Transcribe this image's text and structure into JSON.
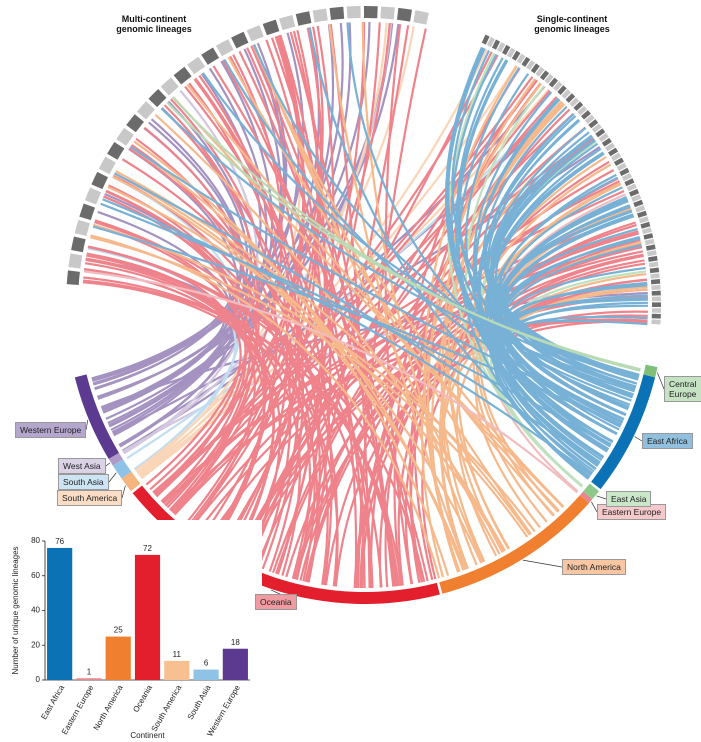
{
  "diagram": {
    "titles": [
      "Multi-continent genomic lineages",
      "Single-continent genomic lineages"
    ],
    "regions": [
      {
        "name": "Western Europe",
        "color": "#5b3a90"
      },
      {
        "name": "West Asia",
        "color": "#b09ac8"
      },
      {
        "name": "South Asia",
        "color": "#8fc3e6"
      },
      {
        "name": "South America",
        "color": "#f6b47e"
      },
      {
        "name": "Oceania",
        "color": "#e31e2d"
      },
      {
        "name": "North America",
        "color": "#f08030"
      },
      {
        "name": "Eastern Europe",
        "color": "#e8878c"
      },
      {
        "name": "East Asia",
        "color": "#8cc98a"
      },
      {
        "name": "East Africa",
        "color": "#0a72b5"
      },
      {
        "name": "Central Europe",
        "color": "#7fbf7a"
      }
    ]
  },
  "chart_data": {
    "type": "bar",
    "categories": [
      "East Africa",
      "Eastern Europe",
      "North America",
      "Oceania",
      "South America",
      "South Asia",
      "Western Europe"
    ],
    "values": [
      76,
      1,
      25,
      72,
      11,
      6,
      18
    ],
    "colors": [
      "#0a72b5",
      "#e8878c",
      "#f08030",
      "#e31e2d",
      "#f8c090",
      "#8fc3e6",
      "#5b3a90"
    ],
    "ylim": [
      0,
      80
    ],
    "yticks": [
      0,
      20,
      40,
      60,
      80
    ],
    "ylabel": "Number of unique genomic lineages",
    "xlabel": "Continent"
  }
}
